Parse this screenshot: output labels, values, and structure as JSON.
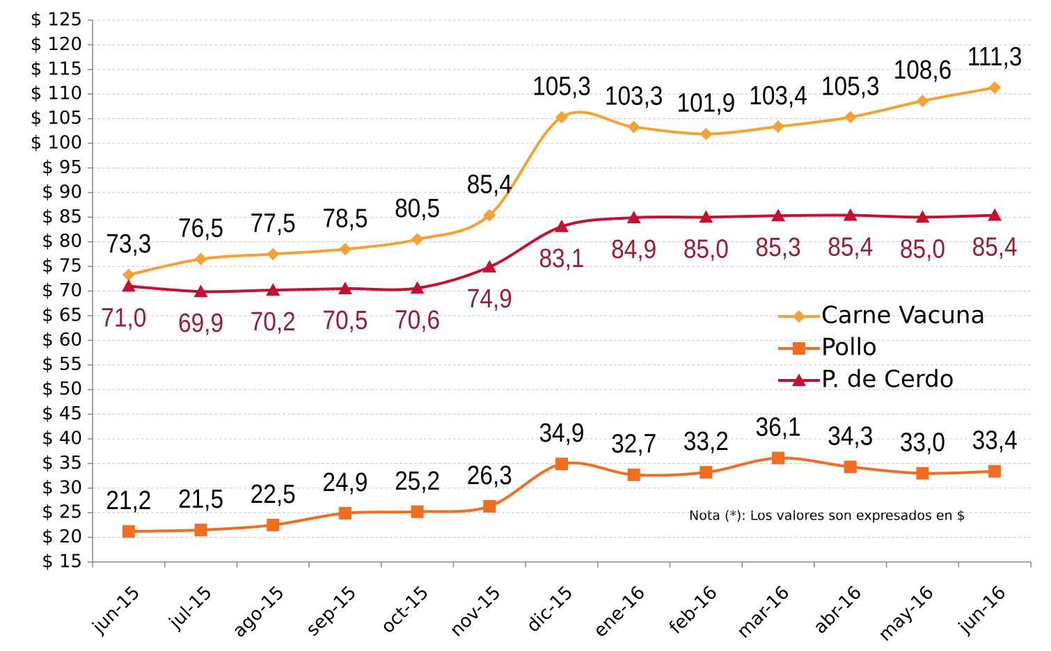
{
  "chart_data": {
    "type": "line",
    "categories": [
      "jun-15",
      "jul-15",
      "ago-15",
      "sep-15",
      "oct-15",
      "nov-15",
      "dic-15",
      "ene-16",
      "feb-16",
      "mar-16",
      "abr-16",
      "may-16",
      "jun-16"
    ],
    "series": [
      {
        "name": "Carne Vacuna",
        "color": "#f7a230",
        "marker": "diamond",
        "label_color": "#000000",
        "label_position": "above",
        "values": [
          73.3,
          76.5,
          77.5,
          78.5,
          80.5,
          85.4,
          105.3,
          103.3,
          101.9,
          103.4,
          105.3,
          108.6,
          111.3
        ],
        "value_labels": [
          "73,3",
          "76,5",
          "77,5",
          "78,5",
          "80,5",
          "85,4",
          "105,3",
          "103,3",
          "101,9",
          "103,4",
          "105,3",
          "108,6",
          "111,3"
        ]
      },
      {
        "name": "Pollo",
        "color": "#f26e1e",
        "marker": "square",
        "label_color": "#000000",
        "label_position": "above",
        "values": [
          21.2,
          21.5,
          22.5,
          24.9,
          25.2,
          26.3,
          34.9,
          32.7,
          33.2,
          36.1,
          34.3,
          33.0,
          33.4
        ],
        "value_labels": [
          "21,2",
          "21,5",
          "22,5",
          "24,9",
          "25,2",
          "26,3",
          "34,9",
          "32,7",
          "33,2",
          "36,1",
          "34,3",
          "33,0",
          "33,4"
        ]
      },
      {
        "name": "P. de Cerdo",
        "color": "#c8102e",
        "marker": "triangle",
        "label_color": "#9b1b30",
        "label_position": "below",
        "values": [
          71.0,
          69.9,
          70.2,
          70.5,
          70.6,
          74.9,
          83.1,
          84.9,
          85.0,
          85.3,
          85.4,
          85.0,
          85.4
        ],
        "value_labels": [
          "71,0",
          "69,9",
          "70,2",
          "70,5",
          "70,6",
          "74,9",
          "83,1",
          "84,9",
          "85,0",
          "85,3",
          "85,4",
          "85,0",
          "85,4"
        ]
      }
    ],
    "ylim": [
      15,
      125
    ],
    "yticks": [
      {
        "value": 15,
        "label": "$ 15"
      },
      {
        "value": 20,
        "label": "$ 20"
      },
      {
        "value": 25,
        "label": "$ 25"
      },
      {
        "value": 30,
        "label": "$ 30"
      },
      {
        "value": 35,
        "label": "$ 35"
      },
      {
        "value": 40,
        "label": "$ 40"
      },
      {
        "value": 45,
        "label": "$ 45"
      },
      {
        "value": 50,
        "label": "$ 50"
      },
      {
        "value": 55,
        "label": "$ 55"
      },
      {
        "value": 60,
        "label": "$ 60"
      },
      {
        "value": 65,
        "label": "$ 65"
      },
      {
        "value": 70,
        "label": "$ 70"
      },
      {
        "value": 75,
        "label": "$ 75"
      },
      {
        "value": 80,
        "label": "$ 80"
      },
      {
        "value": 85,
        "label": "$ 85"
      },
      {
        "value": 90,
        "label": "$ 90"
      },
      {
        "value": 95,
        "label": "$ 95"
      },
      {
        "value": 100,
        "label": "$ 100"
      },
      {
        "value": 105,
        "label": "$ 105"
      },
      {
        "value": 110,
        "label": "$ 110"
      },
      {
        "value": 115,
        "label": "$ 115"
      },
      {
        "value": 120,
        "label": "$ 120"
      },
      {
        "value": 125,
        "label": "$ 125"
      }
    ],
    "grid": true,
    "legend": "right",
    "annotation": "Nota (*): Los valores son expresados en $"
  }
}
